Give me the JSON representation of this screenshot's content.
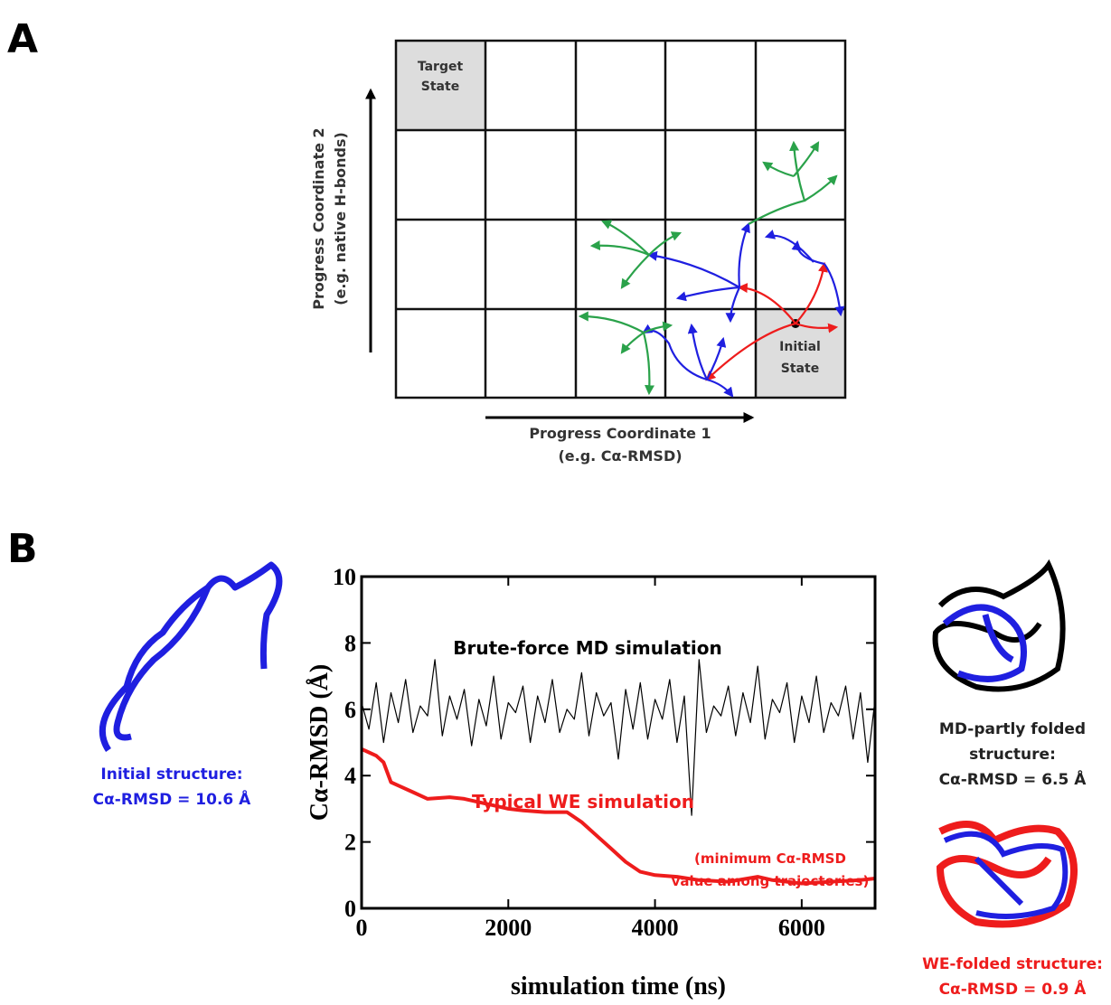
{
  "panel_a": {
    "label": "A",
    "target_state": [
      "Target",
      "State"
    ],
    "initial_state": [
      "Initial",
      "State"
    ],
    "y_axis_label": [
      "Progress Coordinate 2",
      "(e.g. native H-bonds)"
    ],
    "x_axis_label": [
      "Progress Coordinate 1",
      "(e.g. Cα-RMSD)"
    ]
  },
  "panel_b": {
    "label": "B",
    "initial_structure": [
      "Initial structure:",
      "Cα-RMSD = 10.6 Å"
    ],
    "md_structure": [
      "MD-partly folded",
      "structure:",
      "Cα-RMSD = 6.5 Å"
    ],
    "we_structure": [
      "WE-folded structure:",
      "Cα-RMSD = 0.9 Å"
    ]
  },
  "chart_data": {
    "type": "line",
    "x_label": "simulation time  (ns)",
    "y_label": "Cα-RMSD  (Å)",
    "xlim": [
      0,
      7000
    ],
    "ylim": [
      0,
      10
    ],
    "xticks": [
      0,
      2000,
      4000,
      6000
    ],
    "yticks": [
      0,
      2,
      4,
      6,
      8,
      10
    ],
    "annotations": [
      "Brute-force MD simulation",
      "Typical WE simulation",
      "(minimum Cα-RMSD",
      "value among trajectories)"
    ],
    "series": [
      {
        "name": "Brute-force MD simulation",
        "color": "#000000",
        "x": [
          0,
          100,
          200,
          300,
          400,
          500,
          600,
          700,
          800,
          900,
          1000,
          1100,
          1200,
          1300,
          1400,
          1500,
          1600,
          1700,
          1800,
          1900,
          2000,
          2100,
          2200,
          2300,
          2400,
          2500,
          2600,
          2700,
          2800,
          2900,
          3000,
          3100,
          3200,
          3300,
          3400,
          3500,
          3600,
          3700,
          3800,
          3900,
          4000,
          4100,
          4200,
          4300,
          4400,
          4500,
          4600,
          4700,
          4800,
          4900,
          5000,
          5100,
          5200,
          5300,
          5400,
          5500,
          5600,
          5700,
          5800,
          5900,
          6000,
          6100,
          6200,
          6300,
          6400,
          6500,
          6600,
          6700,
          6800,
          6900,
          7000
        ],
        "values": [
          6.2,
          5.4,
          6.8,
          5.0,
          6.5,
          5.6,
          6.9,
          5.3,
          6.1,
          5.8,
          7.5,
          5.2,
          6.4,
          5.7,
          6.6,
          4.9,
          6.3,
          5.5,
          7.0,
          5.1,
          6.2,
          5.9,
          6.7,
          5.0,
          6.4,
          5.6,
          6.9,
          5.3,
          6.0,
          5.7,
          7.1,
          5.2,
          6.5,
          5.8,
          6.2,
          4.5,
          6.6,
          5.4,
          6.8,
          5.1,
          6.3,
          5.7,
          6.9,
          5.0,
          6.4,
          2.8,
          7.5,
          5.3,
          6.1,
          5.8,
          6.7,
          5.2,
          6.5,
          5.6,
          7.3,
          5.1,
          6.3,
          5.9,
          6.8,
          5.0,
          6.4,
          5.6,
          7.0,
          5.3,
          6.2,
          5.8,
          6.7,
          5.1,
          6.5,
          4.4,
          6.3
        ]
      },
      {
        "name": "Typical WE simulation",
        "color": "#ee1c1c",
        "x": [
          0,
          100,
          200,
          300,
          400,
          500,
          700,
          900,
          1200,
          1400,
          1600,
          1800,
          2000,
          2200,
          2500,
          2800,
          3000,
          3200,
          3400,
          3600,
          3800,
          4000,
          4300,
          4600,
          5000,
          5400,
          5600,
          6000,
          6400,
          6800,
          7000
        ],
        "values": [
          4.8,
          4.7,
          4.6,
          4.4,
          3.8,
          3.7,
          3.5,
          3.3,
          3.35,
          3.3,
          3.2,
          3.1,
          3.0,
          2.95,
          2.9,
          2.9,
          2.6,
          2.2,
          1.8,
          1.4,
          1.1,
          1.0,
          0.95,
          0.85,
          0.8,
          0.95,
          0.85,
          0.75,
          0.8,
          0.85,
          0.9
        ]
      }
    ]
  }
}
